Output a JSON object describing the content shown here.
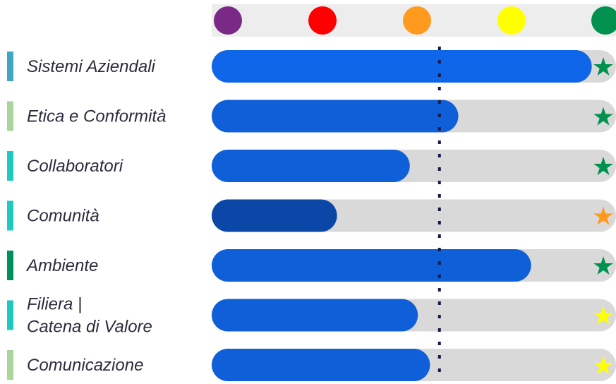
{
  "chart_data": {
    "type": "bar",
    "orientation": "horizontal",
    "title": "",
    "xlabel": "",
    "ylabel": "",
    "xlim": [
      0,
      1
    ],
    "reference_line": 0.6,
    "scale_colors": [
      "#7a2a86",
      "#ff0000",
      "#ff9a1f",
      "#ffff00",
      "#00914f"
    ],
    "categories": [
      {
        "label": [
          "Sistemi Aziendali"
        ],
        "value": 0.94,
        "marker": "#3fa7c2",
        "bar_color": "#0f66e8",
        "star_color": "#00914f"
      },
      {
        "label": [
          "Etica e Conformità"
        ],
        "value": 0.61,
        "marker": "#a9d49a",
        "bar_color": "#0f5fd8",
        "star_color": "#00914f"
      },
      {
        "label": [
          "Collaboratori"
        ],
        "value": 0.49,
        "marker": "#1ec9c1",
        "bar_color": "#0f5fd8",
        "star_color": "#00914f"
      },
      {
        "label": [
          "Comunità"
        ],
        "value": 0.31,
        "marker": "#1ec9c1",
        "bar_color": "#0a47a6",
        "star_color": "#ff9a1f"
      },
      {
        "label": [
          "Ambiente"
        ],
        "value": 0.79,
        "marker": "#00915a",
        "bar_color": "#0f5fd8",
        "star_color": "#00914f"
      },
      {
        "label": [
          "Filiera |",
          "Catena di Valore"
        ],
        "value": 0.51,
        "marker": "#1ec9c1",
        "bar_color": "#0f5fd8",
        "star_color": "#ffff00"
      },
      {
        "label": [
          "Comunicazione"
        ],
        "value": 0.54,
        "marker": "#a9d49a",
        "bar_color": "#0f5fd8",
        "star_color": "#ffff00"
      }
    ]
  }
}
